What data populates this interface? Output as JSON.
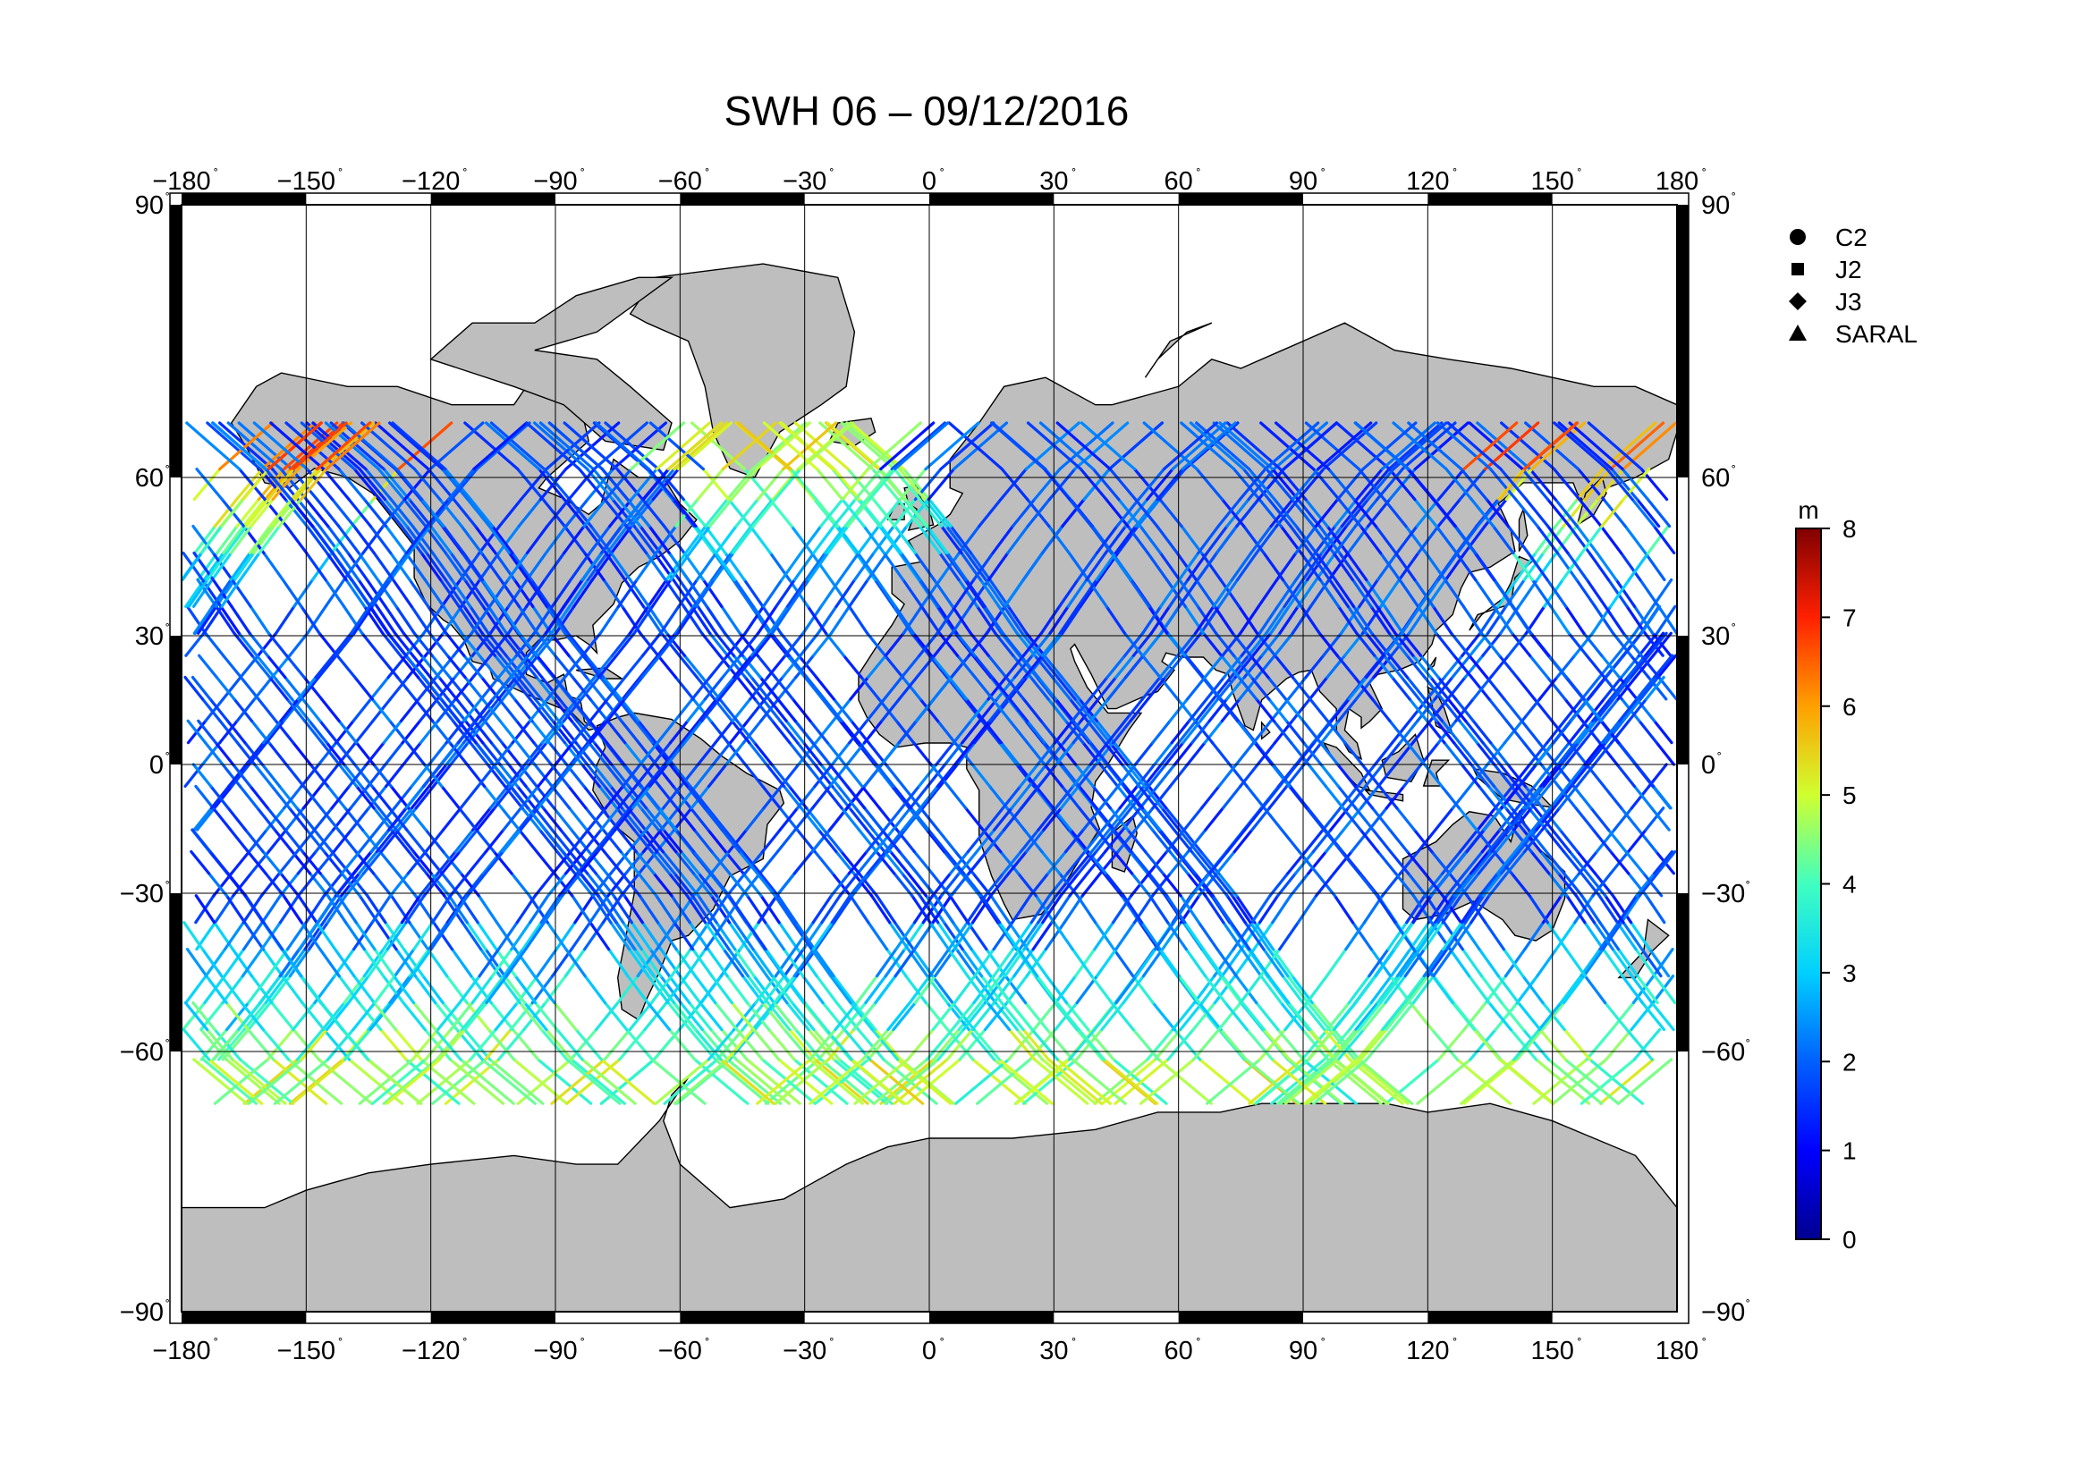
{
  "title": "SWH 06 – 09/12/2016",
  "map": {
    "lon_ticks": [
      -180,
      -150,
      -120,
      -90,
      -60,
      -30,
      0,
      30,
      60,
      90,
      120,
      150,
      180
    ],
    "lat_ticks": [
      90,
      60,
      30,
      0,
      -30,
      -60,
      -90
    ],
    "degree_symbol": "˚",
    "land_color": "#bebebe",
    "ocean_color": "#ffffff"
  },
  "legend": {
    "items": [
      {
        "symbol": "circle",
        "label": "C2"
      },
      {
        "symbol": "square",
        "label": "J2"
      },
      {
        "symbol": "diamond",
        "label": "J3"
      },
      {
        "symbol": "triangle",
        "label": "SARAL"
      }
    ]
  },
  "colorbar": {
    "unit": "m",
    "min": 0,
    "max": 8,
    "ticks": [
      0,
      1,
      2,
      3,
      4,
      5,
      6,
      7,
      8
    ],
    "colors": [
      "#00008f",
      "#0000ff",
      "#0080ff",
      "#00ffff",
      "#80ff80",
      "#ffff00",
      "#ff8000",
      "#ff0000",
      "#800000"
    ]
  }
}
